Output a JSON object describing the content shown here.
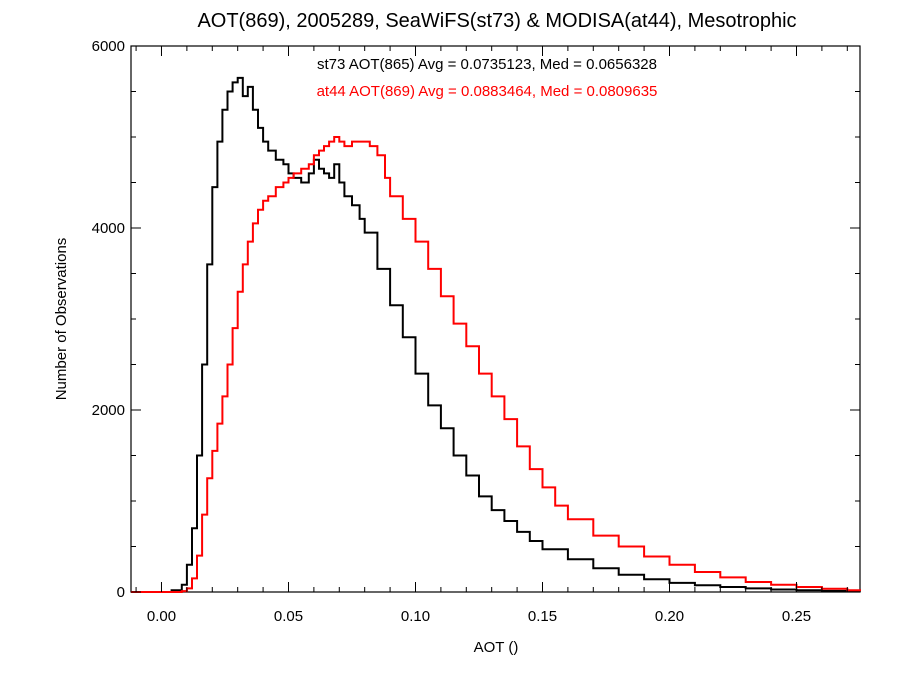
{
  "chart_data": {
    "type": "line",
    "title": "AOT(869), 2005289, SeaWiFS(st73) & MODISA(at44), Mesotrophic",
    "xlabel": "AOT ()",
    "ylabel": "Number of Observations",
    "xlim": [
      -0.012,
      0.275
    ],
    "ylim": [
      0,
      6000
    ],
    "xticks": [
      0.0,
      0.05,
      0.1,
      0.15,
      0.2,
      0.25
    ],
    "xtick_labels": [
      "0.00",
      "0.05",
      "0.10",
      "0.15",
      "0.20",
      "0.25"
    ],
    "yticks": [
      0,
      2000,
      4000,
      6000
    ],
    "ytick_labels": [
      "0",
      "2000",
      "4000",
      "6000"
    ],
    "grid": false,
    "legend_position": "top-center",
    "annotations": [
      {
        "text": "st73 AOT(865) Avg = 0.0735123, Med = 0.0656328",
        "color": "#000000"
      },
      {
        "text": "at44 AOT(869) Avg = 0.0883464, Med = 0.0809635",
        "color": "#ff0000"
      }
    ],
    "series": [
      {
        "color": "#000000",
        "x": [
          -0.012,
          0.0,
          0.004,
          0.008,
          0.01,
          0.012,
          0.014,
          0.016,
          0.018,
          0.02,
          0.022,
          0.024,
          0.026,
          0.028,
          0.03,
          0.032,
          0.034,
          0.036,
          0.038,
          0.04,
          0.042,
          0.045,
          0.048,
          0.05,
          0.052,
          0.055,
          0.058,
          0.06,
          0.062,
          0.064,
          0.066,
          0.068,
          0.07,
          0.072,
          0.075,
          0.078,
          0.08,
          0.085,
          0.09,
          0.095,
          0.1,
          0.105,
          0.11,
          0.115,
          0.12,
          0.125,
          0.13,
          0.135,
          0.14,
          0.145,
          0.15,
          0.16,
          0.17,
          0.18,
          0.19,
          0.2,
          0.21,
          0.22,
          0.23,
          0.24,
          0.25,
          0.26,
          0.27,
          0.275
        ],
        "y": [
          0,
          0,
          20,
          80,
          300,
          700,
          1500,
          2500,
          3600,
          4450,
          4950,
          5300,
          5500,
          5600,
          5650,
          5450,
          5550,
          5300,
          5100,
          4950,
          4850,
          4750,
          4700,
          4600,
          4550,
          4500,
          4600,
          4750,
          4650,
          4600,
          4550,
          4700,
          4500,
          4350,
          4250,
          4100,
          3950,
          3550,
          3150,
          2800,
          2400,
          2050,
          1800,
          1500,
          1280,
          1050,
          900,
          780,
          660,
          560,
          470,
          360,
          260,
          190,
          140,
          100,
          75,
          55,
          40,
          28,
          20,
          12,
          8,
          5
        ]
      },
      {
        "color": "#ff0000",
        "x": [
          -0.012,
          0.0,
          0.004,
          0.008,
          0.01,
          0.012,
          0.014,
          0.016,
          0.018,
          0.02,
          0.022,
          0.024,
          0.026,
          0.028,
          0.03,
          0.032,
          0.034,
          0.036,
          0.038,
          0.04,
          0.042,
          0.045,
          0.048,
          0.05,
          0.052,
          0.055,
          0.058,
          0.06,
          0.062,
          0.064,
          0.066,
          0.068,
          0.07,
          0.072,
          0.075,
          0.078,
          0.08,
          0.082,
          0.085,
          0.088,
          0.09,
          0.095,
          0.1,
          0.105,
          0.11,
          0.115,
          0.12,
          0.125,
          0.13,
          0.135,
          0.14,
          0.145,
          0.15,
          0.155,
          0.16,
          0.17,
          0.18,
          0.19,
          0.2,
          0.21,
          0.22,
          0.23,
          0.24,
          0.25,
          0.26,
          0.27,
          0.275
        ],
        "y": [
          0,
          0,
          0,
          10,
          40,
          150,
          400,
          850,
          1250,
          1550,
          1850,
          2150,
          2500,
          2900,
          3300,
          3600,
          3850,
          4050,
          4200,
          4300,
          4350,
          4450,
          4500,
          4550,
          4600,
          4650,
          4700,
          4800,
          4850,
          4900,
          4950,
          5000,
          4950,
          4900,
          4950,
          4950,
          4950,
          4900,
          4800,
          4550,
          4350,
          4100,
          3850,
          3550,
          3250,
          2950,
          2700,
          2400,
          2150,
          1900,
          1600,
          1350,
          1150,
          950,
          800,
          620,
          500,
          390,
          300,
          220,
          160,
          110,
          80,
          55,
          35,
          20,
          10
        ]
      }
    ]
  }
}
